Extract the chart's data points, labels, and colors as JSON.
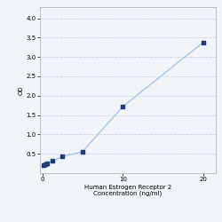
{
  "x": [
    0.156,
    0.313,
    0.625,
    1.25,
    2.5,
    5.0,
    10.0,
    20.0
  ],
  "y": [
    0.197,
    0.228,
    0.263,
    0.318,
    0.425,
    0.558,
    1.72,
    3.38
  ],
  "line_color": "#a8c8e8",
  "marker_color": "#1f3d7a",
  "marker_size": 9,
  "xlabel_line1": "Human Estrogen Receptor 2",
  "xlabel_line2": "Concentration (ng/ml)",
  "ylabel": "OD",
  "xlim": [
    -0.3,
    21.5
  ],
  "ylim": [
    0,
    4.3
  ],
  "yticks": [
    0.5,
    1.0,
    1.5,
    2.0,
    2.5,
    3.0,
    3.5,
    4.0
  ],
  "xticks": [
    0,
    10,
    20
  ],
  "grid_color": "#c8d4e8",
  "bg_color": "#f0f3f8",
  "axis_fontsize": 5,
  "tick_fontsize": 5,
  "linewidth": 1.0
}
